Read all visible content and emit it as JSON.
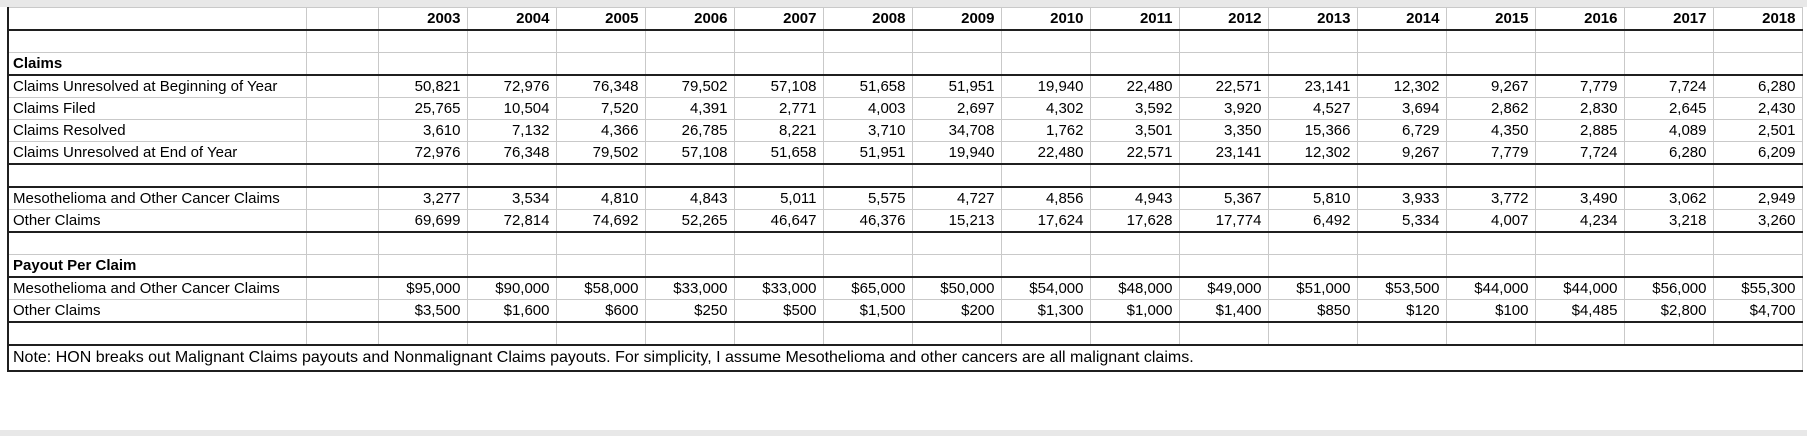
{
  "sheet": {
    "years": [
      "2003",
      "2004",
      "2005",
      "2006",
      "2007",
      "2008",
      "2009",
      "2010",
      "2011",
      "2012",
      "2013",
      "2014",
      "2015",
      "2016",
      "2017",
      "2018"
    ],
    "rows": [
      {
        "kind": "blank"
      },
      {
        "kind": "heading",
        "label": "Claims"
      },
      {
        "kind": "data",
        "label": "Claims Unresolved at Beginning of Year",
        "values": [
          "50,821",
          "72,976",
          "76,348",
          "79,502",
          "57,108",
          "51,658",
          "51,951",
          "19,940",
          "22,480",
          "22,571",
          "23,141",
          "12,302",
          "9,267",
          "7,779",
          "7,724",
          "6,280"
        ]
      },
      {
        "kind": "data",
        "label": "Claims Filed",
        "values": [
          "25,765",
          "10,504",
          "7,520",
          "4,391",
          "2,771",
          "4,003",
          "2,697",
          "4,302",
          "3,592",
          "3,920",
          "4,527",
          "3,694",
          "2,862",
          "2,830",
          "2,645",
          "2,430"
        ]
      },
      {
        "kind": "data",
        "label": "Claims Resolved",
        "values": [
          "3,610",
          "7,132",
          "4,366",
          "26,785",
          "8,221",
          "3,710",
          "34,708",
          "1,762",
          "3,501",
          "3,350",
          "15,366",
          "6,729",
          "4,350",
          "2,885",
          "4,089",
          "2,501"
        ]
      },
      {
        "kind": "data",
        "label": "Claims Unresolved at End of Year",
        "values": [
          "72,976",
          "76,348",
          "79,502",
          "57,108",
          "51,658",
          "51,951",
          "19,940",
          "22,480",
          "22,571",
          "23,141",
          "12,302",
          "9,267",
          "7,779",
          "7,724",
          "6,280",
          "6,209"
        ]
      },
      {
        "kind": "blank"
      },
      {
        "kind": "data",
        "label": "Mesothelioma and Other Cancer Claims",
        "values": [
          "3,277",
          "3,534",
          "4,810",
          "4,843",
          "5,011",
          "5,575",
          "4,727",
          "4,856",
          "4,943",
          "5,367",
          "5,810",
          "3,933",
          "3,772",
          "3,490",
          "3,062",
          "2,949"
        ]
      },
      {
        "kind": "data",
        "label": "Other Claims",
        "values": [
          "69,699",
          "72,814",
          "74,692",
          "52,265",
          "46,647",
          "46,376",
          "15,213",
          "17,624",
          "17,628",
          "17,774",
          "6,492",
          "5,334",
          "4,007",
          "4,234",
          "3,218",
          "3,260"
        ]
      },
      {
        "kind": "blank"
      },
      {
        "kind": "heading",
        "label": "Payout Per Claim"
      },
      {
        "kind": "data",
        "label": "Mesothelioma and Other Cancer Claims",
        "values": [
          "$95,000",
          "$90,000",
          "$58,000",
          "$33,000",
          "$33,000",
          "$65,000",
          "$50,000",
          "$54,000",
          "$48,000",
          "$49,000",
          "$51,000",
          "$53,500",
          "$44,000",
          "$44,000",
          "$56,000",
          "$55,300"
        ]
      },
      {
        "kind": "data",
        "label": "Other Claims",
        "values": [
          "$3,500",
          "$1,600",
          "$600",
          "$250",
          "$500",
          "$1,500",
          "$200",
          "$1,300",
          "$1,000",
          "$1,400",
          "$850",
          "$120",
          "$100",
          "$4,485",
          "$2,800",
          "$4,700"
        ]
      },
      {
        "kind": "blank"
      },
      {
        "kind": "note",
        "label": "Note: HON breaks out Malignant Claims payouts and Nonmalignant Claims payouts. For simplicity, I assume Mesothelioma and other cancers are all malignant claims."
      }
    ]
  }
}
